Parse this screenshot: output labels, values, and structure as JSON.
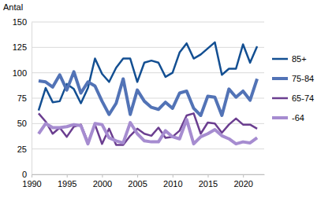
{
  "chart_data": {
    "type": "line",
    "y_label": "Antal",
    "x": [
      1991,
      1992,
      1993,
      1994,
      1995,
      1996,
      1997,
      1998,
      1999,
      2000,
      2001,
      2002,
      2003,
      2004,
      2005,
      2006,
      2007,
      2008,
      2009,
      2010,
      2011,
      2012,
      2013,
      2014,
      2015,
      2016,
      2017,
      2018,
      2019,
      2020,
      2021,
      2022
    ],
    "series": [
      {
        "name": "85+",
        "color": "#134f92",
        "values": [
          63,
          85,
          71,
          72,
          89,
          84,
          70,
          85,
          114,
          99,
          91,
          105,
          114,
          114,
          91,
          110,
          112,
          110,
          96,
          100,
          120,
          129,
          114,
          118,
          124,
          130,
          98,
          104,
          104,
          128,
          110,
          126
        ]
      },
      {
        "name": "75-84",
        "color": "#5273b6",
        "values": [
          92,
          91,
          86,
          98,
          83,
          101,
          80,
          91,
          87,
          72,
          59,
          70,
          94,
          59,
          83,
          72,
          66,
          64,
          71,
          65,
          80,
          82,
          65,
          58,
          77,
          76,
          58,
          84,
          76,
          82,
          73,
          94
        ]
      },
      {
        "name": "65-74",
        "color": "#6b3e90",
        "values": [
          60,
          52,
          40,
          46,
          37,
          47,
          49,
          32,
          49,
          30,
          45,
          29,
          29,
          38,
          45,
          40,
          38,
          46,
          36,
          37,
          43,
          58,
          60,
          40,
          51,
          50,
          41,
          49,
          55,
          49,
          49,
          45
        ]
      },
      {
        "name": "-64",
        "color": "#a68cd0",
        "values": [
          40,
          50,
          46,
          46,
          47,
          49,
          48,
          30,
          50,
          49,
          36,
          33,
          31,
          51,
          40,
          33,
          32,
          32,
          43,
          37,
          35,
          54,
          30,
          37,
          40,
          44,
          38,
          35,
          30,
          32,
          31,
          36
        ]
      }
    ],
    "xlim": [
      1990,
      2023
    ],
    "xticks": [
      1990,
      1995,
      2000,
      2005,
      2010,
      2015,
      2020
    ],
    "ylim": [
      0,
      150
    ],
    "yticks": [
      0,
      25,
      50,
      75,
      100,
      125,
      150
    ],
    "grid": true,
    "legend": "right"
  }
}
